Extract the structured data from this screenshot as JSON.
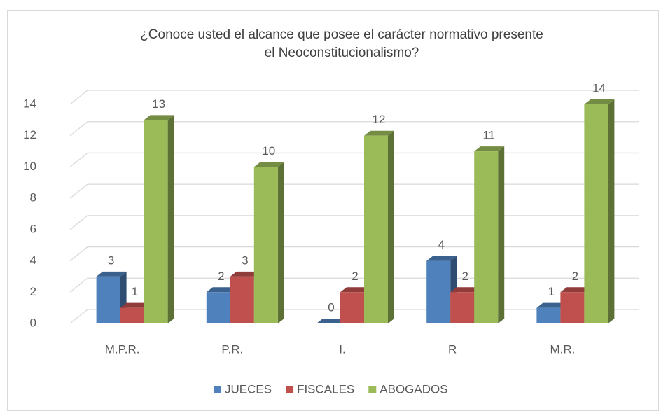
{
  "chart_data": {
    "type": "bar3d",
    "title": [
      "¿Conoce usted  el alcance que posee el carácter normativo presente",
      "el Neoconstitucionalismo?"
    ],
    "categories": [
      "M.P.R.",
      "P.R.",
      "I.",
      "R",
      "M.R."
    ],
    "series": [
      {
        "name": "JUECES",
        "color": "#4f81bd",
        "values": [
          3,
          2,
          0,
          4,
          1
        ]
      },
      {
        "name": "FISCALES",
        "color": "#c0504d",
        "values": [
          1,
          3,
          2,
          2,
          2
        ]
      },
      {
        "name": "ABOGADOS",
        "color": "#9bbb59",
        "values": [
          13,
          10,
          12,
          11,
          14
        ]
      }
    ],
    "ylim": [
      0,
      14
    ],
    "yticks": [
      0,
      2,
      4,
      6,
      8,
      10,
      12,
      14
    ],
    "grid": true,
    "legend": "bottom"
  }
}
